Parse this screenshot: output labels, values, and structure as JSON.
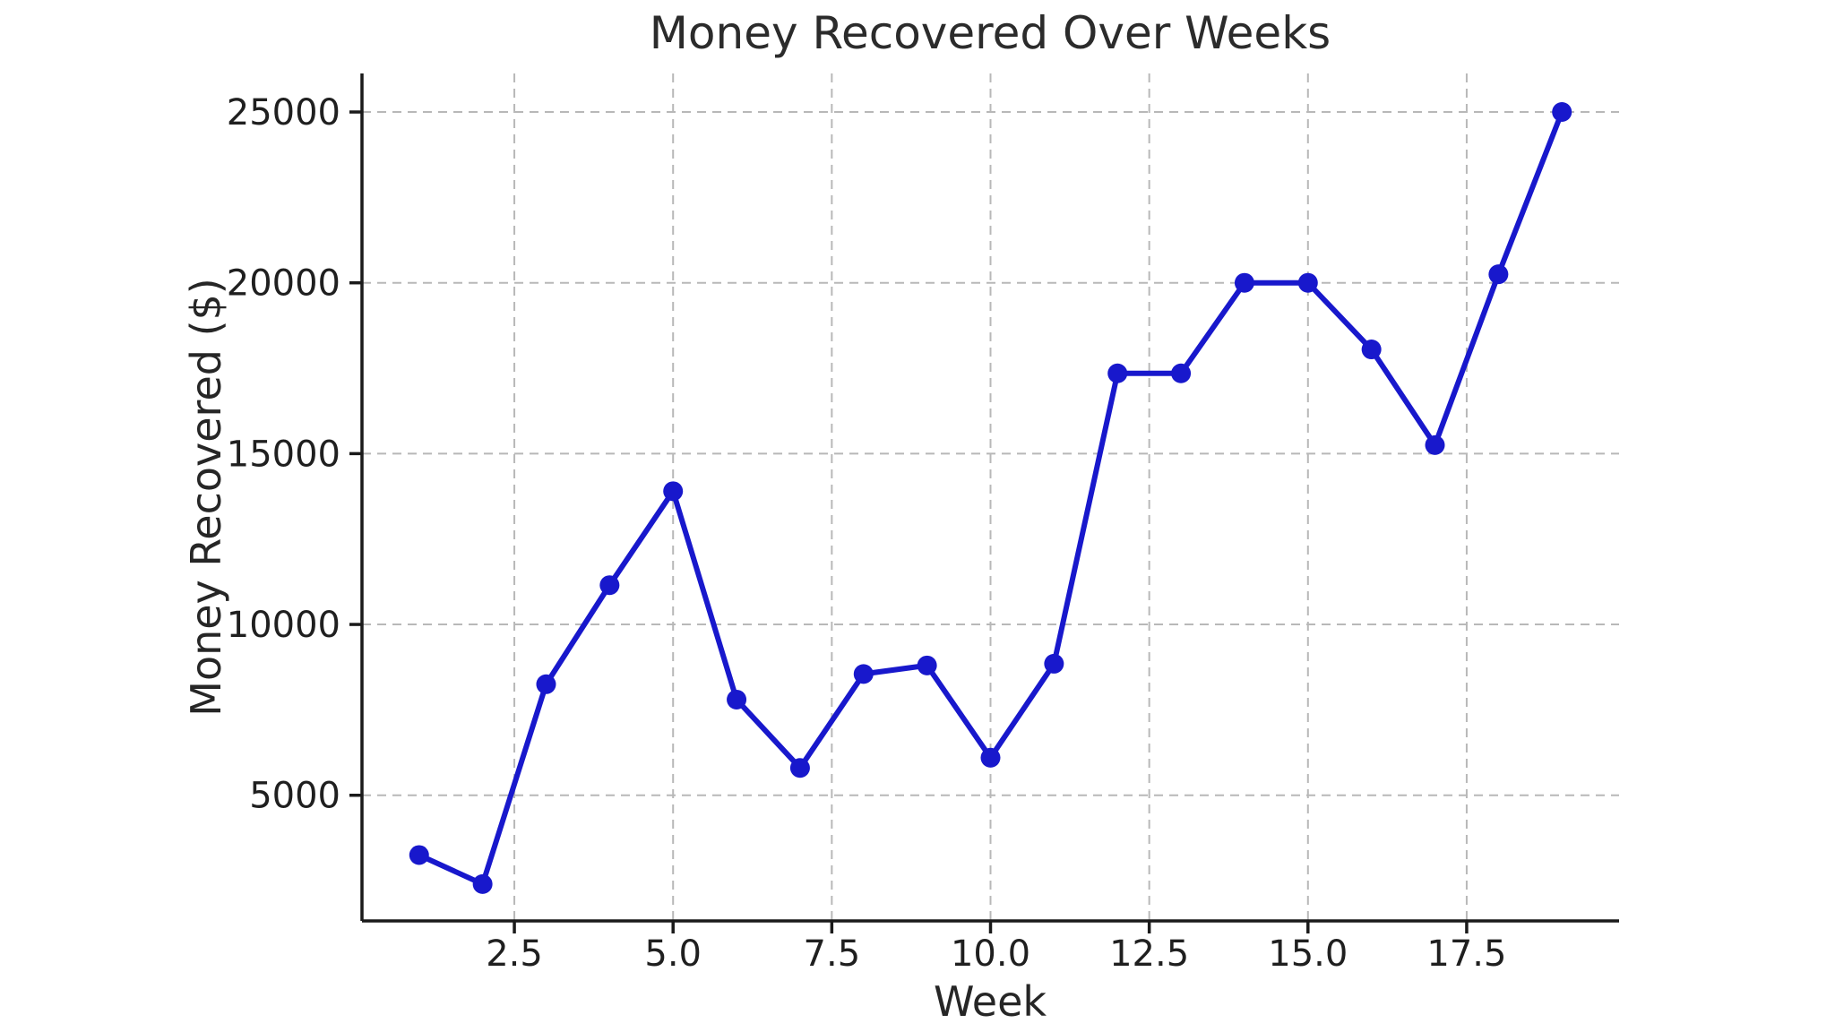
{
  "figure": {
    "background": "#ffffff"
  },
  "chart_data": {
    "type": "line",
    "title": "Money Recovered Over Weeks",
    "xlabel": "Week",
    "ylabel": "Money Recovered ($)",
    "x": [
      1,
      2,
      3,
      4,
      5,
      6,
      7,
      8,
      9,
      10,
      11,
      12,
      13,
      14,
      15,
      16,
      17,
      18,
      19
    ],
    "values": [
      3250,
      2400,
      8250,
      11150,
      13900,
      7800,
      5800,
      8550,
      8800,
      6100,
      8850,
      17350,
      17350,
      20000,
      20000,
      18050,
      15250,
      20250,
      25000
    ],
    "xlim": [
      0.1,
      19.9
    ],
    "ylim": [
      1322,
      26128
    ],
    "xticks": {
      "values": [
        2.5,
        5.0,
        7.5,
        10.0,
        12.5,
        15.0,
        17.5
      ],
      "labels": [
        "2.5",
        "5.0",
        "7.5",
        "10.0",
        "12.5",
        "15.0",
        "17.5"
      ]
    },
    "yticks": {
      "values": [
        5000,
        10000,
        15000,
        20000,
        25000
      ],
      "labels": [
        "5000",
        "10000",
        "15000",
        "20000",
        "25000"
      ]
    },
    "grid": true,
    "grid_style": "dashed",
    "legend": "none",
    "line_color": "#1818cc",
    "marker": "circle",
    "spine_color": "#1a1a1a",
    "grid_color": "#b8b8b8",
    "text_color": "#262626"
  }
}
